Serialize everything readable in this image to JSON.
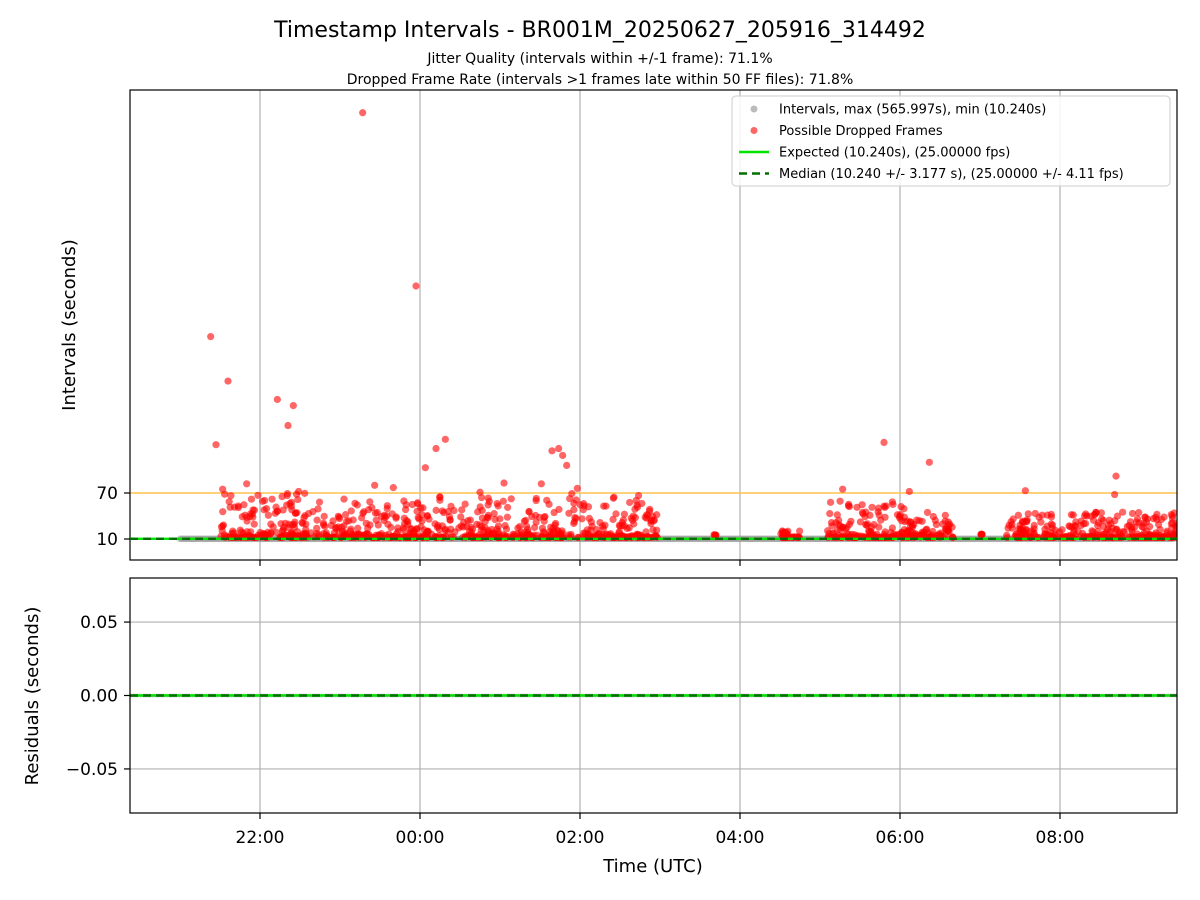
{
  "chart_data": {
    "type": "scatter",
    "title": "Timestamp Intervals - BR001M_20250627_205916_314492",
    "subtitles": [
      "Jitter Quality (intervals within +/-1 frame): 71.1%",
      "Dropped Frame Rate (intervals >1 frames late within 50 FF files): 71.8%"
    ],
    "xlabel": "Time (UTC)",
    "x_ticks": [
      "22:00",
      "00:00",
      "02:00",
      "04:00",
      "06:00",
      "08:00"
    ],
    "grid": true,
    "legend_position": "top-right",
    "colors": {
      "intervals": "#9e9e9e",
      "dropped": "#ff0000",
      "expected": "#00e600",
      "median": "#007000",
      "threshold": "#ffc34d",
      "grid": "#b0b0b0"
    },
    "top_panel": {
      "ylabel": "Intervals (seconds)",
      "y_ticks": [
        "10",
        "70"
      ],
      "ylim_approx": [
        -17,
        590
      ],
      "threshold_line": 70,
      "expected_line": 10.24,
      "median_line": 10.24,
      "legend": [
        {
          "label": "Intervals, max (565.997s), min (10.240s)",
          "style": "dot-gray"
        },
        {
          "label": "Possible Dropped Frames",
          "style": "dot-red"
        },
        {
          "label": "Expected (10.240s), (25.00000 fps)",
          "style": "line-green"
        },
        {
          "label": "Median (10.240 +/- 3.177 s), (25.00000 +/- 4.11 fps)",
          "style": "dash-darkgreen"
        }
      ],
      "dropped_frames_outliers": [
        {
          "x": "21:23",
          "y": 274
        },
        {
          "x": "21:27",
          "y": 133
        },
        {
          "x": "21:32",
          "y": 75
        },
        {
          "x": "21:36",
          "y": 216
        },
        {
          "x": "21:50",
          "y": 82
        },
        {
          "x": "22:13",
          "y": 192
        },
        {
          "x": "22:21",
          "y": 158
        },
        {
          "x": "22:25",
          "y": 184
        },
        {
          "x": "22:29",
          "y": 72
        },
        {
          "x": "23:03",
          "y": 62
        },
        {
          "x": "23:17",
          "y": 565.997
        },
        {
          "x": "23:26",
          "y": 80
        },
        {
          "x": "23:40",
          "y": 77
        },
        {
          "x": "23:57",
          "y": 340
        },
        {
          "x": "00:04",
          "y": 103
        },
        {
          "x": "00:12",
          "y": 128
        },
        {
          "x": "00:19",
          "y": 140
        },
        {
          "x": "00:45",
          "y": 71
        },
        {
          "x": "01:03",
          "y": 83
        },
        {
          "x": "01:31",
          "y": 82
        },
        {
          "x": "01:39",
          "y": 125
        },
        {
          "x": "01:44",
          "y": 128
        },
        {
          "x": "01:47",
          "y": 119
        },
        {
          "x": "01:50",
          "y": 106
        },
        {
          "x": "01:58",
          "y": 76
        },
        {
          "x": "05:17",
          "y": 75
        },
        {
          "x": "05:48",
          "y": 136
        },
        {
          "x": "06:07",
          "y": 72
        },
        {
          "x": "06:22",
          "y": 110
        },
        {
          "x": "07:34",
          "y": 73
        },
        {
          "x": "08:42",
          "y": 92
        },
        {
          "x": "08:41",
          "y": 68
        }
      ],
      "dropped_frames_clusters": [
        {
          "from": "21:30",
          "to": "22:50",
          "y_range": [
            12,
            70
          ]
        },
        {
          "from": "22:50",
          "to": "23:55",
          "y_range": [
            12,
            60
          ]
        },
        {
          "from": "23:55",
          "to": "01:30",
          "y_range": [
            12,
            70
          ]
        },
        {
          "from": "01:30",
          "to": "02:58",
          "y_range": [
            12,
            70
          ]
        },
        {
          "from": "03:40",
          "to": "03:42",
          "y_range": [
            15,
            18
          ]
        },
        {
          "from": "04:30",
          "to": "04:45",
          "y_range": [
            12,
            25
          ]
        },
        {
          "from": "05:05",
          "to": "06:05",
          "y_range": [
            12,
            60
          ]
        },
        {
          "from": "06:05",
          "to": "06:40",
          "y_range": [
            12,
            45
          ]
        },
        {
          "from": "07:00",
          "to": "07:02",
          "y_range": [
            16,
            18
          ]
        },
        {
          "from": "07:20",
          "to": "09:30",
          "y_range": [
            12,
            45
          ]
        }
      ],
      "intervals_band": {
        "from": "21:00",
        "to": "09:30",
        "y": 10.24
      }
    },
    "bottom_panel": {
      "ylabel": "Residuals (seconds)",
      "y_ticks": [
        "0.05",
        "0.00",
        "−0.05"
      ],
      "ylim": [
        -0.08,
        0.08
      ],
      "residual_value": 0.0
    }
  }
}
